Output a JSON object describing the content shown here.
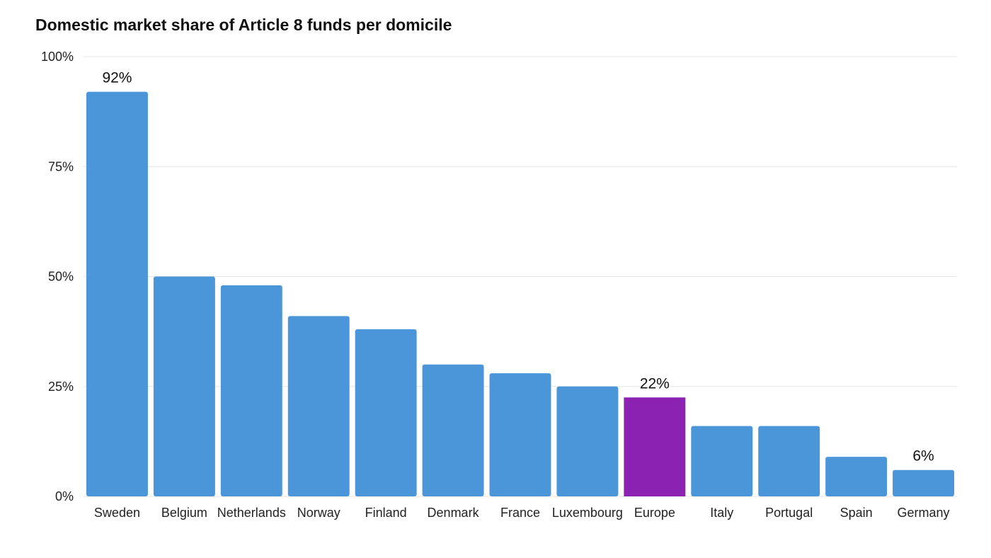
{
  "chart_data": {
    "type": "bar",
    "title": "Domestic market share of Article 8 funds per domicile",
    "xlabel": "",
    "ylabel": "",
    "categories": [
      "Sweden",
      "Belgium",
      "Netherlands",
      "Norway",
      "Finland",
      "Denmark",
      "France",
      "Luxembourg",
      "Europe",
      "Italy",
      "Portugal",
      "Spain",
      "Germany"
    ],
    "values": [
      92,
      50,
      48,
      41,
      38,
      30,
      28,
      25,
      22.5,
      16,
      16,
      9,
      6
    ],
    "data_labels": [
      {
        "category": "Sweden",
        "text": "92%"
      },
      {
        "category": "Europe",
        "text": "22%"
      },
      {
        "category": "Germany",
        "text": "6%"
      }
    ],
    "ylim": [
      0,
      100
    ],
    "yticks": [
      0,
      25,
      50,
      75,
      100
    ],
    "ytick_labels": [
      "0%",
      "25%",
      "50%",
      "75%",
      "100%"
    ],
    "grid": true,
    "legend": "none",
    "colors": {
      "default_bar": "#4b96d9",
      "highlight_bar": "#8b22b2",
      "gridline": "#e6e6e6"
    },
    "highlight_category": "Europe"
  }
}
